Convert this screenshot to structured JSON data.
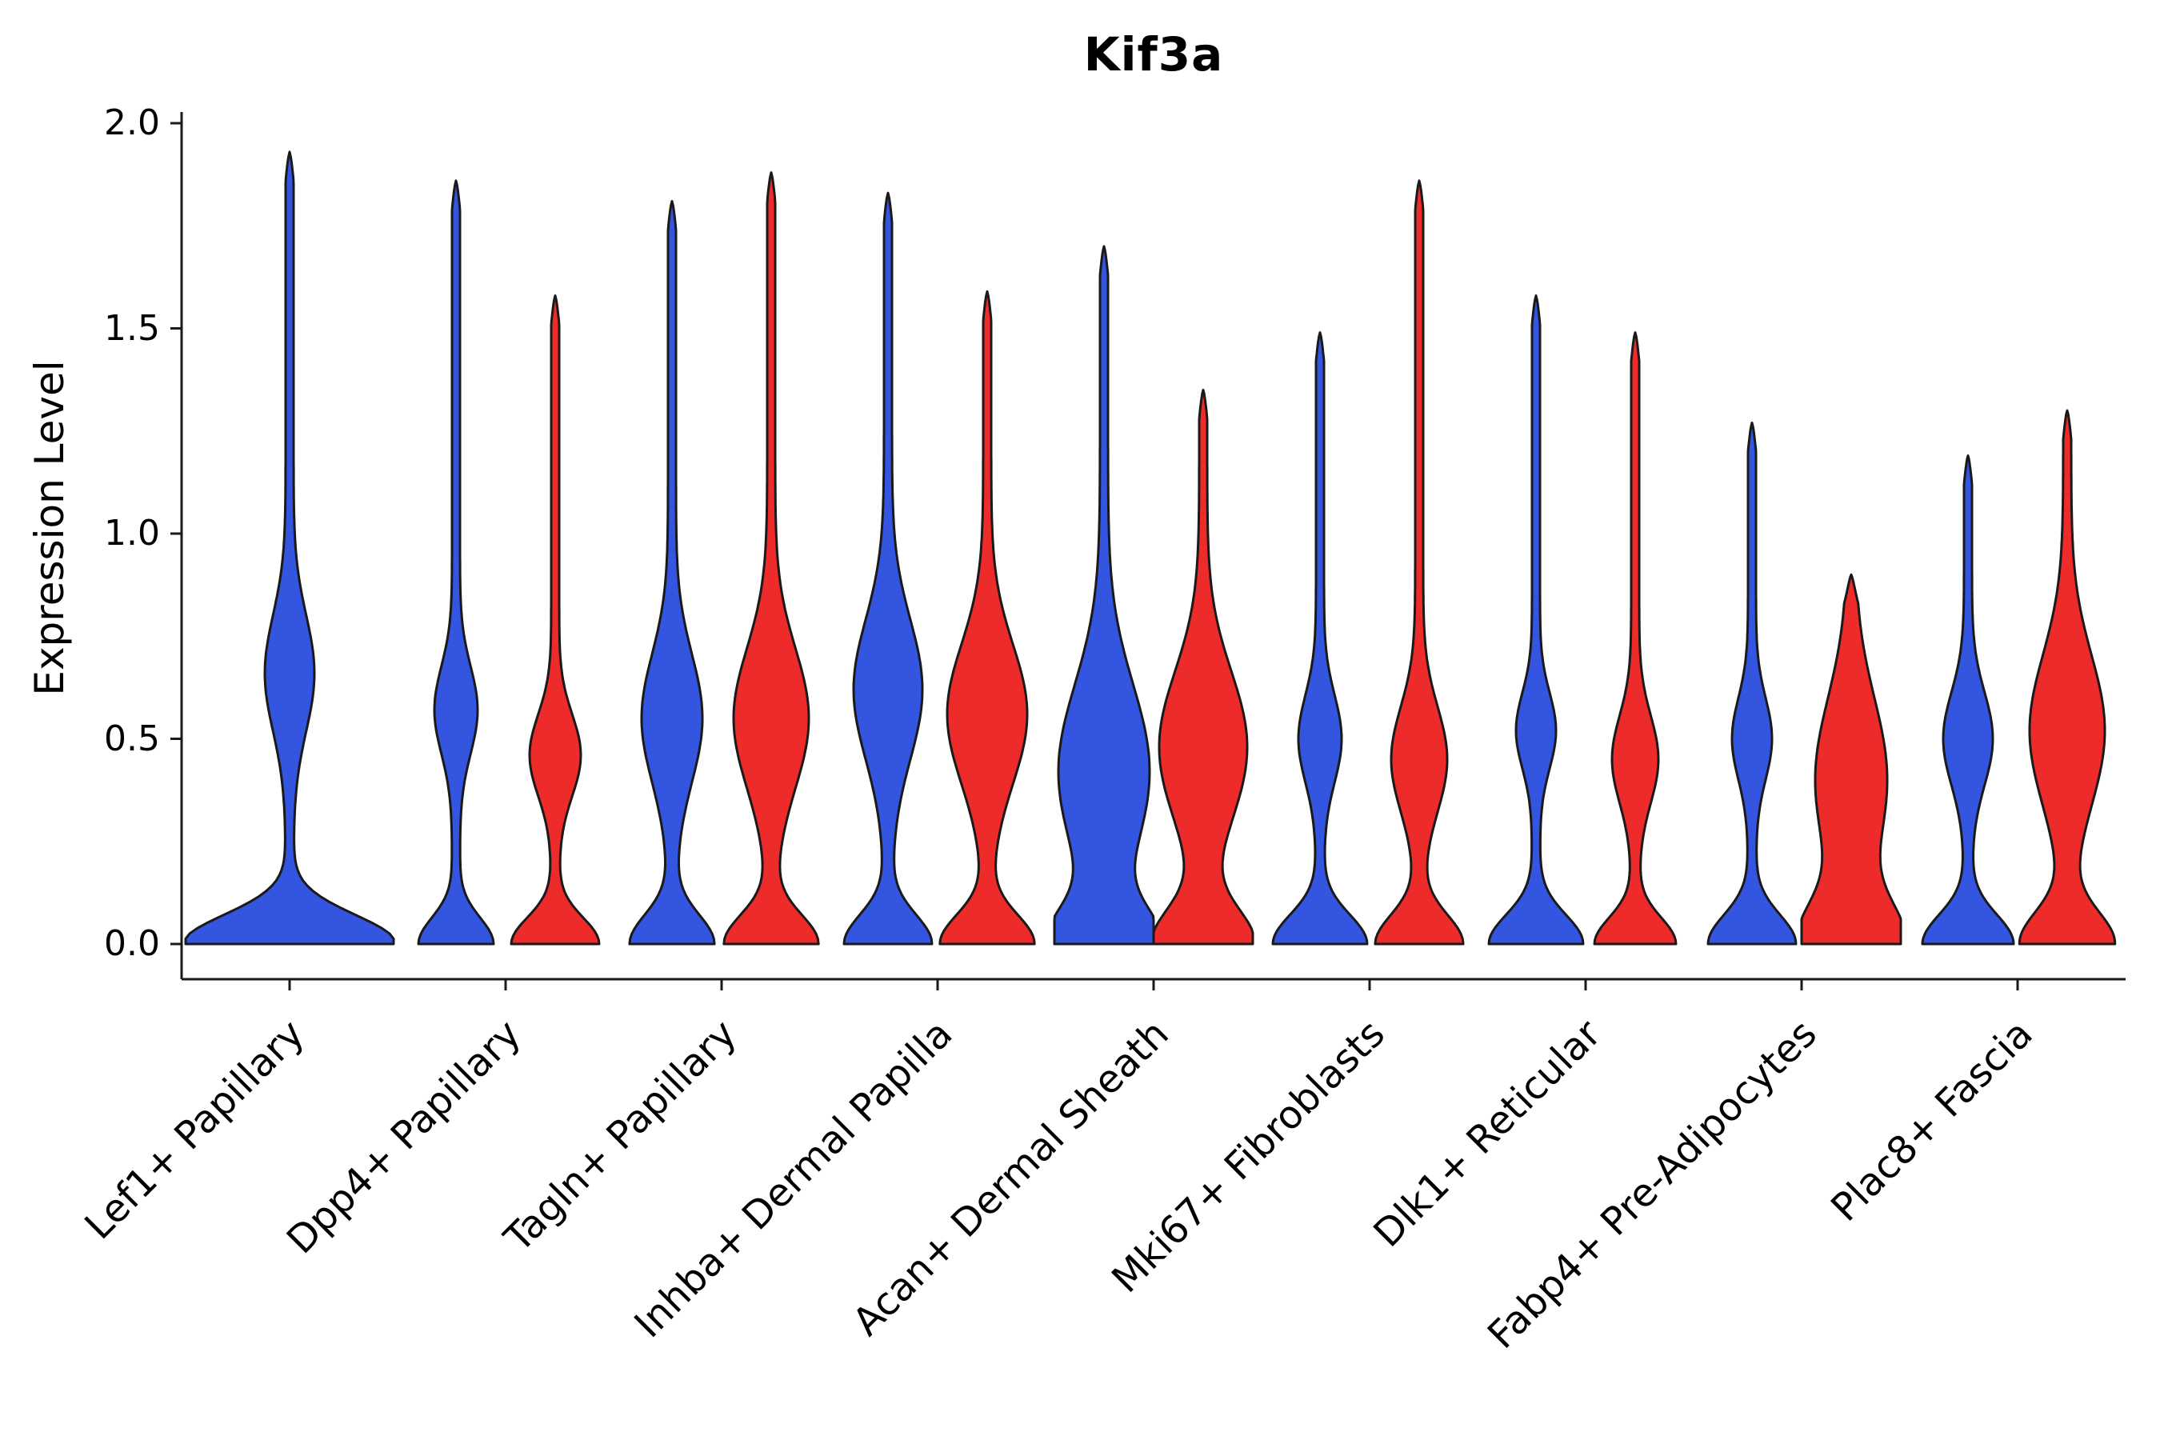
{
  "title": "Kif3a",
  "y_axis": {
    "label": "Expression Level",
    "tick_labels": [
      "0.0",
      "0.5",
      "1.0",
      "1.5",
      "2.0"
    ],
    "tick_values": [
      0.0,
      0.5,
      1.0,
      1.5,
      2.0
    ]
  },
  "x_axis": {
    "categories": [
      "Lef1+ Papillary",
      "Dpp4+ Papillary",
      "Tagln+ Papillary",
      "Inhba+ Dermal Papilla",
      "Acan+ Dermal Sheath",
      "Mki67+ Fibroblasts",
      "Dlk1+ Reticular",
      "Fabp4+ Pre-Adipocytes",
      "Plac8+ Fascia"
    ]
  },
  "chart_data": {
    "type": "violin",
    "title": "Kif3a",
    "xlabel": "",
    "ylabel": "Expression Level",
    "ylim": [
      0,
      2.0
    ],
    "yticks": [
      0.0,
      0.5,
      1.0,
      1.5,
      2.0
    ],
    "ytick_labels": [
      "0.0",
      "0.5",
      "1.0",
      "1.5",
      "2.0"
    ],
    "grid": false,
    "legend": false,
    "categories": [
      "Lef1+ Papillary",
      "Dpp4+ Papillary",
      "Tagln+ Papillary",
      "Inhba+ Dermal Papilla",
      "Acan+ Dermal Sheath",
      "Mki67+ Fibroblasts",
      "Dlk1+ Reticular",
      "Fabp4+ Pre-Adipocytes",
      "Plac8+ Fascia"
    ],
    "group_colors": {
      "blue": "#3355E0",
      "red": "#EE2B2B"
    },
    "edge_color": "#1a1a1a",
    "series": [
      {
        "name": "group-blue",
        "color": "#3355E0",
        "max_expression_by_category": [
          1.93,
          1.86,
          1.81,
          1.83,
          1.7,
          1.49,
          1.58,
          1.27,
          1.19
        ]
      },
      {
        "name": "group-red",
        "color": "#EE2B2B",
        "max_expression_by_category": [
          null,
          1.58,
          1.88,
          1.59,
          1.35,
          1.86,
          1.49,
          0.9,
          1.3
        ]
      }
    ],
    "violins": [
      {
        "category": "Lef1+ Papillary",
        "group": "blue",
        "side": "center",
        "max_expression": 1.93,
        "shape": {
          "base_amp": 128,
          "base_sigma": 0.1,
          "bulge_amp": 26,
          "bulge_center": 0.66,
          "bulge_sigma": 0.2,
          "max_half": 130
        }
      },
      {
        "category": "Dpp4+ Papillary",
        "group": "blue",
        "side": "left",
        "max_expression": 1.86,
        "shape": {
          "base_amp": 42,
          "base_sigma": 0.09,
          "bulge_amp": 22,
          "bulge_center": 0.57,
          "bulge_sigma": 0.15,
          "max_half": 60
        }
      },
      {
        "category": "Dpp4+ Papillary",
        "group": "red",
        "side": "right",
        "max_expression": 1.58,
        "shape": {
          "base_amp": 50,
          "base_sigma": 0.09,
          "bulge_amp": 27,
          "bulge_center": 0.46,
          "bulge_sigma": 0.14,
          "max_half": 60
        }
      },
      {
        "category": "Tagln+ Papillary",
        "group": "blue",
        "side": "left",
        "max_expression": 1.81,
        "shape": {
          "base_amp": 48,
          "base_sigma": 0.1,
          "bulge_amp": 33,
          "bulge_center": 0.55,
          "bulge_sigma": 0.22,
          "max_half": 60
        }
      },
      {
        "category": "Tagln+ Papillary",
        "group": "red",
        "side": "right",
        "max_expression": 1.88,
        "shape": {
          "base_amp": 54,
          "base_sigma": 0.1,
          "bulge_amp": 42,
          "bulge_center": 0.55,
          "bulge_sigma": 0.24,
          "max_half": 60
        }
      },
      {
        "category": "Inhba+ Dermal Papilla",
        "group": "blue",
        "side": "left",
        "max_expression": 1.83,
        "shape": {
          "base_amp": 50,
          "base_sigma": 0.1,
          "bulge_amp": 38,
          "bulge_center": 0.62,
          "bulge_sigma": 0.24,
          "max_half": 60
        }
      },
      {
        "category": "Inhba+ Dermal Papilla",
        "group": "red",
        "side": "right",
        "max_expression": 1.59,
        "shape": {
          "base_amp": 54,
          "base_sigma": 0.1,
          "bulge_amp": 45,
          "bulge_center": 0.56,
          "bulge_sigma": 0.24,
          "max_half": 60
        }
      },
      {
        "category": "Acan+ Dermal Sheath",
        "group": "blue",
        "side": "left",
        "max_expression": 1.7,
        "shape": {
          "base_amp": 60,
          "base_sigma": 0.12,
          "bulge_amp": 52,
          "bulge_center": 0.42,
          "bulge_sigma": 0.3,
          "max_half": 62
        }
      },
      {
        "category": "Acan+ Dermal Sheath",
        "group": "red",
        "side": "right",
        "max_expression": 1.35,
        "shape": {
          "base_amp": 58,
          "base_sigma": 0.12,
          "bulge_amp": 50,
          "bulge_center": 0.48,
          "bulge_sigma": 0.26,
          "max_half": 62
        }
      },
      {
        "category": "Mki67+ Fibroblasts",
        "group": "blue",
        "side": "left",
        "max_expression": 1.49,
        "shape": {
          "base_amp": 54,
          "base_sigma": 0.1,
          "bulge_amp": 22,
          "bulge_center": 0.5,
          "bulge_sigma": 0.15,
          "max_half": 60
        }
      },
      {
        "category": "Mki67+ Fibroblasts",
        "group": "red",
        "side": "right",
        "max_expression": 1.86,
        "shape": {
          "base_amp": 50,
          "base_sigma": 0.1,
          "bulge_amp": 30,
          "bulge_center": 0.45,
          "bulge_sigma": 0.18,
          "max_half": 60
        }
      },
      {
        "category": "Dlk1+ Reticular",
        "group": "blue",
        "side": "left",
        "max_expression": 1.58,
        "shape": {
          "base_amp": 54,
          "base_sigma": 0.1,
          "bulge_amp": 20,
          "bulge_center": 0.52,
          "bulge_sigma": 0.13,
          "max_half": 60
        }
      },
      {
        "category": "Dlk1+ Reticular",
        "group": "red",
        "side": "right",
        "max_expression": 1.49,
        "shape": {
          "base_amp": 46,
          "base_sigma": 0.09,
          "bulge_amp": 24,
          "bulge_center": 0.45,
          "bulge_sigma": 0.15,
          "max_half": 60
        }
      },
      {
        "category": "Fabp4+ Pre-Adipocytes",
        "group": "blue",
        "side": "left",
        "max_expression": 1.27,
        "shape": {
          "base_amp": 50,
          "base_sigma": 0.1,
          "bulge_amp": 20,
          "bulge_center": 0.5,
          "bulge_sigma": 0.14,
          "max_half": 60
        }
      },
      {
        "category": "Fabp4+ Pre-Adipocytes",
        "group": "red",
        "side": "right",
        "max_expression": 0.9,
        "shape": {
          "base_amp": 58,
          "base_sigma": 0.14,
          "bulge_amp": 40,
          "bulge_center": 0.4,
          "bulge_sigma": 0.28,
          "max_half": 62
        }
      },
      {
        "category": "Plac8+ Fascia",
        "group": "blue",
        "side": "left",
        "max_expression": 1.19,
        "shape": {
          "base_amp": 52,
          "base_sigma": 0.1,
          "bulge_amp": 26,
          "bulge_center": 0.5,
          "bulge_sigma": 0.16,
          "max_half": 60
        }
      },
      {
        "category": "Plac8+ Fascia",
        "group": "red",
        "side": "right",
        "max_expression": 1.3,
        "shape": {
          "base_amp": 54,
          "base_sigma": 0.11,
          "bulge_amp": 42,
          "bulge_center": 0.52,
          "bulge_sigma": 0.26,
          "max_half": 60
        }
      }
    ]
  }
}
